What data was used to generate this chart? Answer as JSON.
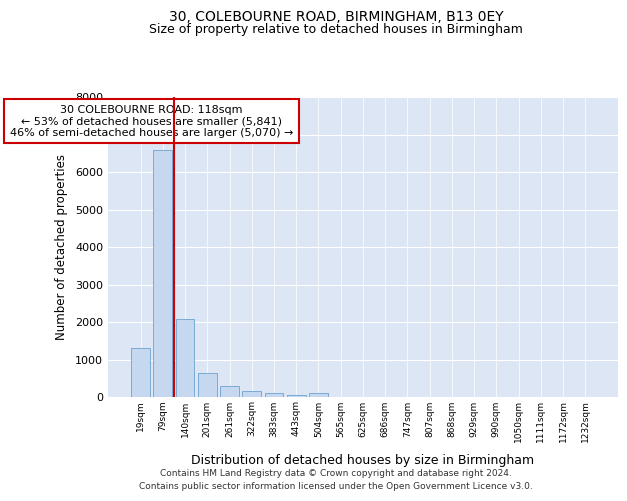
{
  "title1": "30, COLEBOURNE ROAD, BIRMINGHAM, B13 0EY",
  "title2": "Size of property relative to detached houses in Birmingham",
  "xlabel": "Distribution of detached houses by size in Birmingham",
  "ylabel": "Number of detached properties",
  "bar_labels": [
    "19sqm",
    "79sqm",
    "140sqm",
    "201sqm",
    "261sqm",
    "322sqm",
    "383sqm",
    "443sqm",
    "504sqm",
    "565sqm",
    "625sqm",
    "686sqm",
    "747sqm",
    "807sqm",
    "868sqm",
    "929sqm",
    "990sqm",
    "1050sqm",
    "1111sqm",
    "1172sqm",
    "1232sqm"
  ],
  "bar_values": [
    1300,
    6600,
    2080,
    650,
    300,
    150,
    110,
    60,
    100,
    0,
    0,
    0,
    0,
    0,
    0,
    0,
    0,
    0,
    0,
    0,
    0
  ],
  "bar_color": "#c5d8f0",
  "bar_edge_color": "#7aaad4",
  "ylim": [
    0,
    8000
  ],
  "yticks": [
    0,
    1000,
    2000,
    3000,
    4000,
    5000,
    6000,
    7000,
    8000
  ],
  "red_line_x": 2.0,
  "annotation_title": "30 COLEBOURNE ROAD: 118sqm",
  "annotation_line1": "← 53% of detached houses are smaller (5,841)",
  "annotation_line2": "46% of semi-detached houses are larger (5,070) →",
  "annotation_box_color": "#cc0000",
  "footer1": "Contains HM Land Registry data © Crown copyright and database right 2024.",
  "footer2": "Contains public sector information licensed under the Open Government Licence v3.0.",
  "bg_color": "#ffffff",
  "plot_bg_color": "#dce6f5"
}
